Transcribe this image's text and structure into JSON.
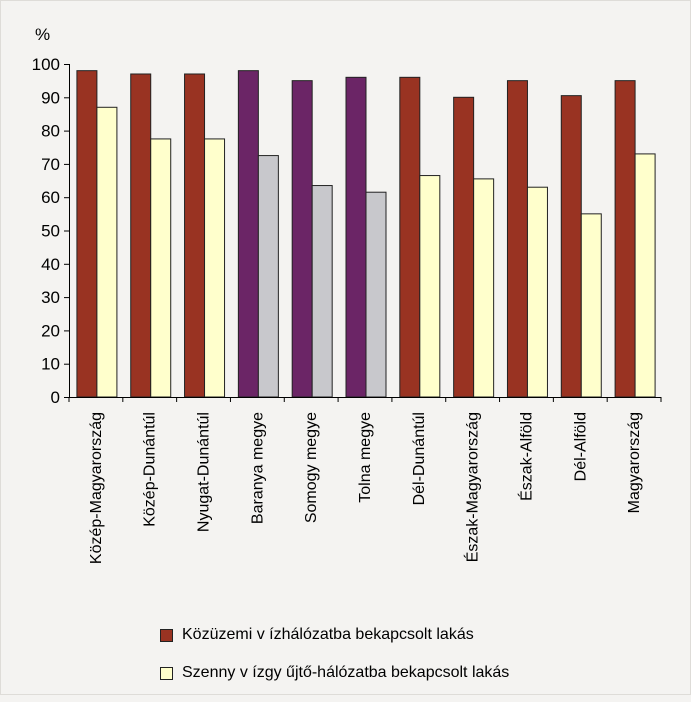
{
  "chart_data": {
    "type": "bar",
    "unit": "%",
    "ylim": [
      0,
      100
    ],
    "yticks": [
      0,
      10,
      20,
      30,
      40,
      50,
      60,
      70,
      80,
      90,
      100
    ],
    "grid": false,
    "legend_position": "bottom",
    "categories": [
      "Közép-Magyarország",
      "Közép-Dunántúl",
      "Nyugat-Dunántúl",
      "Baranya megye",
      "Somogy megye",
      "Tolna megye",
      "Dél-Dunántúl",
      "Észak-Magyarország",
      "Észak-Alföld",
      "Dél-Alföld",
      "Magyarország"
    ],
    "highlighted_categories": [
      "Baranya megye",
      "Somogy megye",
      "Tolna megye"
    ],
    "series": [
      {
        "name": "Közüzemi v ízhálózatba bekapcsolt lakás",
        "color": "#993322",
        "highlight_color": "#6b2566",
        "values": [
          98,
          97,
          97,
          98,
          95,
          96,
          96,
          90,
          95,
          90.5,
          95
        ]
      },
      {
        "name": "Szenny v ízgy űjtő-hálózatba bekapcsolt lakás",
        "color": "#ffffcc",
        "highlight_color": "#c8c8cc",
        "values": [
          87,
          77.5,
          77.5,
          72.5,
          63.5,
          61.5,
          66.5,
          65.5,
          63,
          55,
          73
        ]
      }
    ]
  }
}
